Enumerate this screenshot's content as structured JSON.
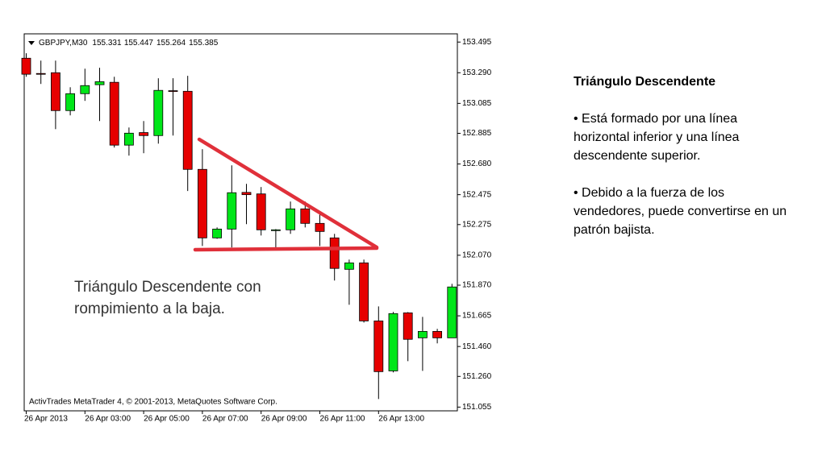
{
  "chart_data": {
    "type": "candlestick",
    "symbol": "GBPJPY,M30",
    "header_values": [
      155.331,
      155.447,
      155.264,
      155.385
    ],
    "footer": "ActivTrades MetaTrader 4, © 2001-2013, MetaQuotes Software Corp.",
    "annotation": [
      "Triángulo Descendente con",
      "rompimiento a la baja."
    ],
    "categories": [
      "26 Apr 2013",
      null,
      null,
      null,
      "26 Apr 03:00",
      null,
      null,
      null,
      "26 Apr 05:00",
      null,
      null,
      null,
      "26 Apr 07:00",
      null,
      null,
      null,
      "26 Apr 09:00",
      null,
      null,
      null,
      "26 Apr 11:00",
      null,
      null,
      null,
      "26 Apr 13:00",
      null,
      null,
      null,
      null,
      null
    ],
    "open": [
      153.387,
      153.285,
      153.29,
      153.037,
      153.15,
      153.21,
      153.226,
      152.806,
      152.89,
      152.87,
      153.17,
      153.166,
      152.644,
      152.186,
      152.245,
      152.49,
      152.48,
      152.24,
      152.24,
      152.38,
      152.283,
      152.186,
      151.976,
      152.019,
      151.631,
      151.297,
      151.685,
      151.518,
      151.561,
      151.518
    ],
    "high": [
      153.42,
      153.371,
      153.371,
      153.193,
      153.317,
      153.323,
      153.263,
      152.924,
      152.967,
      153.253,
      153.253,
      153.269,
      152.779,
      152.256,
      152.671,
      152.547,
      152.526,
      152.245,
      152.429,
      152.429,
      152.348,
      152.213,
      152.041,
      152.041,
      151.728,
      151.691,
      151.69,
      151.658,
      151.578,
      151.879
    ],
    "low": [
      153.263,
      153.215,
      152.913,
      153.005,
      153.102,
      152.967,
      152.79,
      152.736,
      152.752,
      152.816,
      152.87,
      152.499,
      152.132,
      152.18,
      152.122,
      152.278,
      152.202,
      152.122,
      152.213,
      152.256,
      152.132,
      151.901,
      151.739,
      151.62,
      151.109,
      151.287,
      151.362,
      151.297,
      151.481,
      151.518
    ],
    "close": [
      153.28,
      153.28,
      153.037,
      153.15,
      153.204,
      153.23,
      152.806,
      152.886,
      152.87,
      153.172,
      153.165,
      152.644,
      152.186,
      152.245,
      152.488,
      152.475,
      152.24,
      152.24,
      152.38,
      152.283,
      152.229,
      151.982,
      152.019,
      151.631,
      151.292,
      151.68,
      151.508,
      151.561,
      151.518,
      151.858
    ],
    "up_color": "#00e619",
    "down_color": "#e60000",
    "ylim": [
      151.03,
      153.55
    ],
    "yticks": [
      153.495,
      {
        "value": 153.29,
        "label": "153.290"
      },
      153.085,
      152.885,
      {
        "value": 152.68,
        "label": "152.680"
      },
      152.475,
      152.275,
      {
        "value": 152.07,
        "label": "152.070"
      },
      {
        "value": 151.87,
        "label": "151.870"
      },
      151.665,
      {
        "value": 151.46,
        "label": "151.460"
      },
      {
        "value": 151.26,
        "label": "151.260"
      },
      151.055
    ]
  },
  "text_panel": {
    "title": "Triángulo Descendente",
    "bullets": [
      "• Está formado por una línea horizontal inferior y una línea descendente superior.",
      "• Debido a la fuerza de los vendedores, puede convertirse en un patrón bajista."
    ]
  }
}
